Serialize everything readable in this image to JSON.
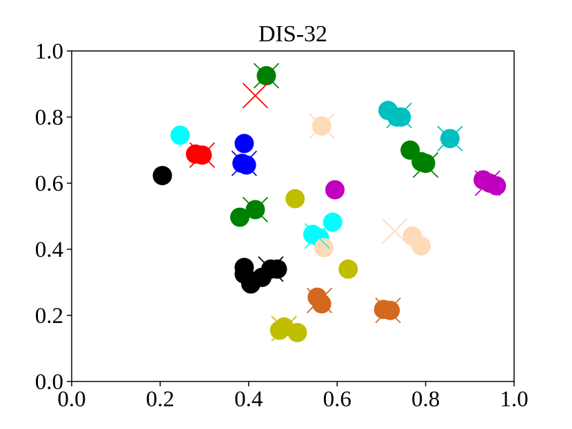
{
  "chart_data": {
    "type": "scatter",
    "title": "DIS-32",
    "xlabel": "",
    "ylabel": "",
    "xlim": [
      0.0,
      1.0
    ],
    "ylim": [
      0.0,
      1.0
    ],
    "xticks": [
      "0.0",
      "0.2",
      "0.4",
      "0.6",
      "0.8",
      "1.0"
    ],
    "yticks": [
      "0.0",
      "0.2",
      "0.4",
      "0.6",
      "0.8",
      "1.0"
    ],
    "grid": false,
    "series": [
      {
        "color": "#008000",
        "points": [
          [
            0.44,
            0.925
          ],
          [
            0.765,
            0.7
          ],
          [
            0.79,
            0.665
          ],
          [
            0.8,
            0.66
          ],
          [
            0.38,
            0.497
          ],
          [
            0.415,
            0.52
          ]
        ],
        "crosses": [
          [
            0.44,
            0.925
          ],
          [
            0.8,
            0.655
          ],
          [
            0.415,
            0.52
          ]
        ]
      },
      {
        "color": "#ff0000",
        "points": [
          [
            0.28,
            0.688
          ],
          [
            0.295,
            0.685
          ]
        ],
        "crosses": [
          [
            0.415,
            0.865
          ],
          [
            0.295,
            0.685
          ]
        ]
      },
      {
        "color": "#00ffff",
        "points": [
          [
            0.245,
            0.745
          ],
          [
            0.59,
            0.482
          ],
          [
            0.545,
            0.445
          ],
          [
            0.56,
            0.435
          ]
        ],
        "crosses": [
          [
            0.555,
            0.44
          ]
        ]
      },
      {
        "color": "#0000ff",
        "points": [
          [
            0.39,
            0.72
          ],
          [
            0.385,
            0.66
          ],
          [
            0.395,
            0.655
          ]
        ],
        "crosses": [
          [
            0.39,
            0.66
          ]
        ]
      },
      {
        "color": "#000000",
        "points": [
          [
            0.205,
            0.623
          ],
          [
            0.39,
            0.345
          ],
          [
            0.39,
            0.325
          ],
          [
            0.405,
            0.295
          ],
          [
            0.43,
            0.315
          ],
          [
            0.45,
            0.34
          ],
          [
            0.465,
            0.34
          ]
        ],
        "crosses": [
          [
            0.45,
            0.34
          ]
        ]
      },
      {
        "color": "#ffdab9",
        "points": [
          [
            0.565,
            0.773
          ],
          [
            0.57,
            0.405
          ],
          [
            0.77,
            0.44
          ],
          [
            0.79,
            0.41
          ]
        ],
        "crosses": [
          [
            0.565,
            0.773
          ],
          [
            0.73,
            0.455
          ]
        ]
      },
      {
        "color": "#00bfbf",
        "points": [
          [
            0.715,
            0.82
          ],
          [
            0.735,
            0.8
          ],
          [
            0.745,
            0.8
          ],
          [
            0.855,
            0.735
          ]
        ],
        "crosses": [
          [
            0.74,
            0.805
          ],
          [
            0.855,
            0.735
          ]
        ]
      },
      {
        "color": "#bf00bf",
        "points": [
          [
            0.595,
            0.58
          ],
          [
            0.93,
            0.61
          ],
          [
            0.945,
            0.6
          ],
          [
            0.96,
            0.592
          ]
        ],
        "crosses": [
          [
            0.94,
            0.6
          ]
        ]
      },
      {
        "color": "#bfbf00",
        "points": [
          [
            0.505,
            0.553
          ],
          [
            0.625,
            0.34
          ],
          [
            0.47,
            0.155
          ],
          [
            0.48,
            0.165
          ],
          [
            0.51,
            0.148
          ]
        ],
        "crosses": [
          [
            0.48,
            0.16
          ]
        ]
      },
      {
        "color": "#d2691e",
        "points": [
          [
            0.555,
            0.255
          ],
          [
            0.565,
            0.235
          ],
          [
            0.705,
            0.218
          ],
          [
            0.72,
            0.215
          ]
        ],
        "crosses": [
          [
            0.56,
            0.245
          ],
          [
            0.715,
            0.215
          ]
        ]
      }
    ]
  }
}
